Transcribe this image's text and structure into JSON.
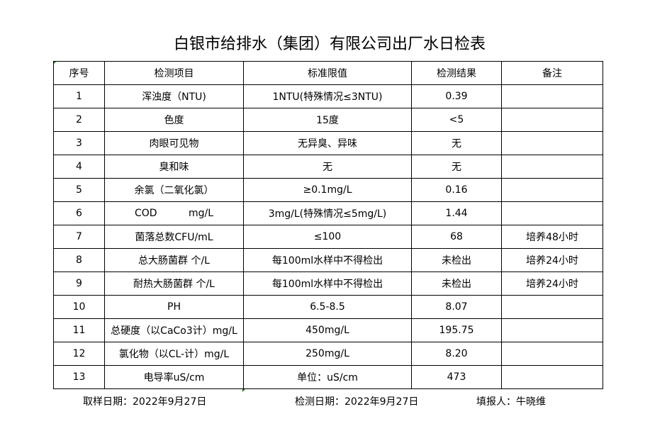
{
  "title": "白银市给排水（集团）有限公司出厂水日检表",
  "headers": [
    "序号",
    "检测项目",
    "标准限值",
    "检测结果",
    "备注"
  ],
  "rows": [
    [
      "1",
      "浑浊度（NTU)",
      "1NTU(特殊情况≤3NTU)",
      "0.39",
      ""
    ],
    [
      "2",
      "色度",
      "15度",
      "<5",
      ""
    ],
    [
      "3",
      "肉眼可见物",
      "无异臭、异味",
      "无",
      ""
    ],
    [
      "4",
      "臭和味",
      "无",
      "无",
      ""
    ],
    [
      "5",
      "余氯（二氧化氯）",
      "≥0.1mg/L",
      "0.16",
      ""
    ],
    [
      "6",
      "COD          mg/L",
      "3mg/L(特殊情况≤5mg/L)",
      "1.44",
      ""
    ],
    [
      "7",
      "菌落总数CFU/mL",
      "≤100",
      "68",
      "培养48小时"
    ],
    [
      "8",
      "总大肠菌群 个/L",
      "每100ml水样中不得检出",
      "未检出",
      "培养24小时"
    ],
    [
      "9",
      "耐热大肠菌群 个/L",
      "每100ml水样中不得检出",
      "未检出",
      "培养24小时"
    ],
    [
      "10",
      "PH",
      "6.5-8.5",
      "8.07",
      ""
    ],
    [
      "11",
      "总硬度（以CaCo3计）mg/L",
      "450mg/L",
      "195.75",
      ""
    ],
    [
      "12",
      "氯化物（以CL-计）mg/L",
      "250mg/L",
      "8.20",
      ""
    ],
    [
      "13",
      "电导率uS/cm",
      "单位：uS/cm",
      "473",
      ""
    ]
  ],
  "footer": {
    "sample_date": "取样日期：2022年9月27日",
    "test_date": "检测日期：2022年9月27日",
    "reporter": "填报人：牛晓维"
  }
}
